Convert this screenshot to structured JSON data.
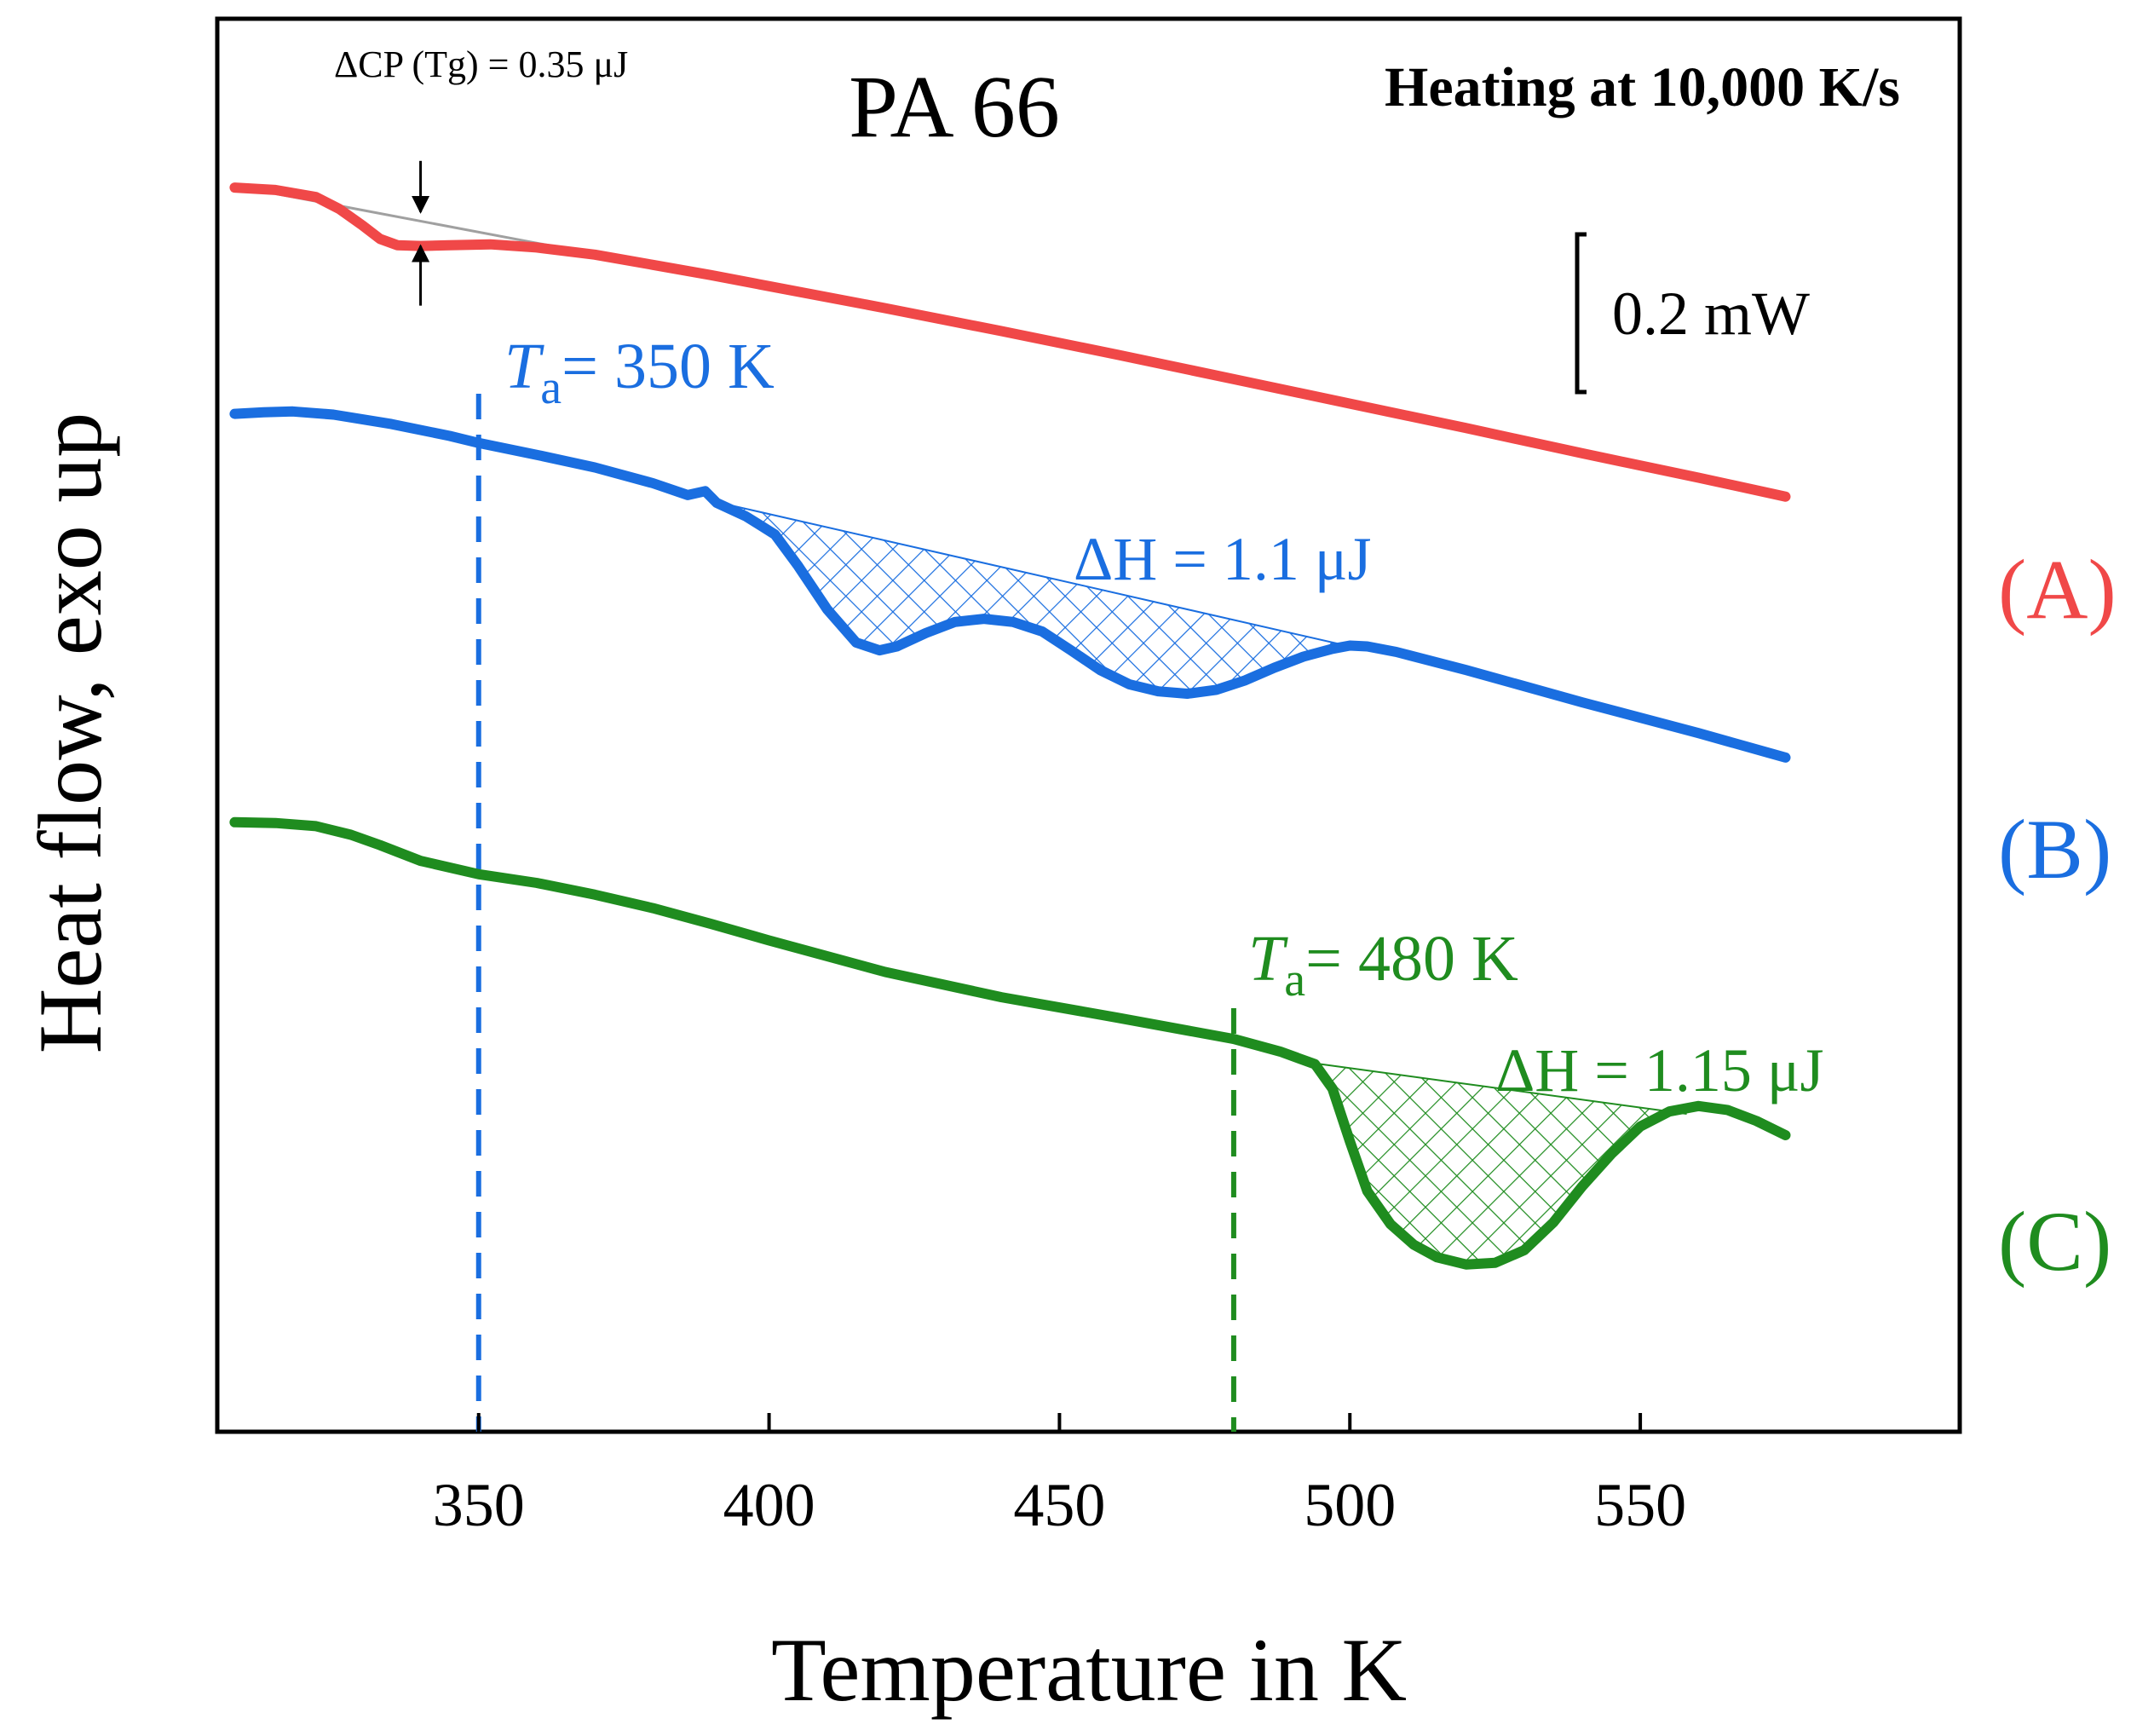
{
  "chart_data": {
    "type": "line",
    "title": "PA 66",
    "subtitle": "Heating at 10,000 K/s",
    "xlabel": "Temperature in K",
    "ylabel": "Heat flow, exo up",
    "xlim": [
      305,
      605
    ],
    "x_ticks": [
      350,
      400,
      450,
      500,
      550
    ],
    "x_tick_labels": [
      "350",
      "400",
      "450",
      "500",
      "550"
    ],
    "y_ticks_shown": false,
    "scale_bar": {
      "label": "0.2 mW",
      "value_mW": 0.2
    },
    "colors": {
      "A": "#f04848",
      "B": "#1a6ee0",
      "C": "#1f8c1f",
      "baseline_gray": "#a0a0a0",
      "axis": "#000000"
    },
    "series": [
      {
        "name": "A",
        "label": "(A)",
        "color": "#f04848",
        "x": [
          308,
          315,
          322,
          326,
          330,
          333,
          336,
          340,
          345,
          352,
          360,
          370,
          380,
          390,
          400,
          420,
          440,
          460,
          480,
          500,
          520,
          540,
          560,
          575
        ],
        "y": [
          8.75,
          8.72,
          8.63,
          8.48,
          8.27,
          8.1,
          8.02,
          8.01,
          8.02,
          8.03,
          7.99,
          7.9,
          7.77,
          7.64,
          7.5,
          7.22,
          6.93,
          6.63,
          6.32,
          6.01,
          5.7,
          5.38,
          5.07,
          4.83
        ],
        "baseline": {
          "x": [
            308,
            382
          ],
          "y": [
            8.77,
            7.74
          ]
        },
        "annotation": {
          "text": "ΔCP (Tg) = 0.35 μJ",
          "x": 340,
          "y_top": 8.44,
          "y_bottom": 8.01
        }
      },
      {
        "name": "B",
        "label": "(B)",
        "color": "#1a6ee0",
        "annealing": {
          "text_var": "T",
          "text_sub": "a",
          "text_rest": "= 350 K",
          "Ta": 350
        },
        "x": [
          308,
          313,
          318,
          325,
          335,
          345,
          350,
          360,
          370,
          380,
          386,
          389,
          391,
          396,
          401,
          405,
          410,
          415,
          419,
          422,
          427,
          432,
          437,
          442,
          447,
          452,
          457,
          462,
          467,
          472,
          477,
          482,
          487,
          492,
          497,
          500,
          503,
          508,
          520,
          540,
          560,
          575
        ],
        "y": [
          5.88,
          5.9,
          5.91,
          5.87,
          5.75,
          5.6,
          5.51,
          5.36,
          5.2,
          5.0,
          4.85,
          4.9,
          4.75,
          4.58,
          4.35,
          3.95,
          3.4,
          2.98,
          2.88,
          2.93,
          3.1,
          3.24,
          3.28,
          3.24,
          3.12,
          2.88,
          2.63,
          2.45,
          2.36,
          2.33,
          2.38,
          2.5,
          2.66,
          2.8,
          2.9,
          2.94,
          2.93,
          2.86,
          2.63,
          2.22,
          1.83,
          1.52
        ],
        "hatched_area": {
          "baseline": {
            "x": [
              391,
              500
            ],
            "y": [
              4.76,
              2.93
            ]
          },
          "text_var": "H",
          "text": "ΔH = 1.1 μJ",
          "value_uJ": 1.1
        }
      },
      {
        "name": "C",
        "label": "(C)",
        "color": "#1f8c1f",
        "annealing": {
          "text_var": "T",
          "text_sub": "a",
          "text_rest": "= 480 K",
          "Ta": 480
        },
        "x": [
          308,
          315,
          322,
          328,
          333,
          340,
          350,
          360,
          370,
          380,
          390,
          400,
          420,
          440,
          460,
          480,
          488,
          494,
          497,
          500,
          503,
          507,
          511,
          515,
          520,
          525,
          530,
          535,
          540,
          545,
          550,
          555,
          560,
          565,
          570,
          575
        ],
        "y": [
          0.7,
          0.69,
          0.65,
          0.54,
          0.41,
          0.21,
          0.04,
          -0.07,
          -0.22,
          -0.39,
          -0.59,
          -0.8,
          -1.2,
          -1.52,
          -1.78,
          -2.05,
          -2.21,
          -2.37,
          -2.68,
          -3.35,
          -3.98,
          -4.4,
          -4.66,
          -4.82,
          -4.91,
          -4.89,
          -4.73,
          -4.38,
          -3.92,
          -3.51,
          -3.16,
          -2.97,
          -2.9,
          -2.95,
          -3.09,
          -3.27
        ],
        "hatched_area": {
          "baseline": {
            "x": [
              494,
              558
            ],
            "y": [
              -2.36,
              -3.0
            ]
          },
          "text_var": "H",
          "text": "ΔH = 1.15 μJ",
          "value_uJ": 1.15
        }
      }
    ]
  }
}
